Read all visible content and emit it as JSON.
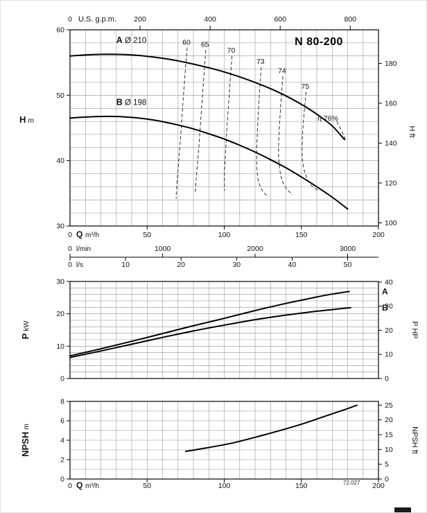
{
  "meta": {
    "code": "72.027"
  },
  "chart_data": [
    {
      "id": "head",
      "type": "line",
      "title": "N 80-200",
      "x_range": [
        0,
        200
      ],
      "y_range": [
        30,
        60
      ],
      "x_grid_step": 10,
      "y_grid_step": 2,
      "axes": {
        "left": {
          "label": "H",
          "unit": "m",
          "ticks": [
            30,
            40,
            50,
            60
          ]
        },
        "right": {
          "label": "H ft",
          "ticks": [
            100,
            120,
            140,
            160,
            180
          ],
          "to_left_factor": 0.3048
        },
        "top": {
          "label": "U.S. g.p.m.",
          "zero_label": "0",
          "ticks": [
            200,
            400,
            600,
            800
          ],
          "to_x_factor": 0.22712
        },
        "bottom": [
          {
            "label": "Q",
            "unit": "m³/h",
            "zero_label": "0",
            "ticks": [
              50,
              100,
              150,
              200
            ],
            "to_x_factor": 1
          },
          {
            "label": "",
            "unit": "l/min",
            "zero_label": "0",
            "ticks": [
              1000,
              2000,
              3000
            ],
            "to_x_factor": 0.06
          },
          {
            "label": "",
            "unit": "l/s",
            "zero_label": "0",
            "ticks": [
              10,
              20,
              30,
              40,
              50
            ],
            "to_x_factor": 3.6
          }
        ]
      },
      "series": [
        {
          "name": "A",
          "label_bold": "A",
          "label_rest": " Ø 210",
          "label_pos": [
            30,
            58.0
          ],
          "points": [
            [
              0,
              56.0
            ],
            [
              10,
              56.15
            ],
            [
              20,
              56.25
            ],
            [
              30,
              56.25
            ],
            [
              40,
              56.15
            ],
            [
              50,
              55.95
            ],
            [
              60,
              55.65
            ],
            [
              70,
              55.25
            ],
            [
              80,
              54.75
            ],
            [
              90,
              54.2
            ],
            [
              100,
              53.55
            ],
            [
              110,
              52.8
            ],
            [
              120,
              51.95
            ],
            [
              130,
              51.0
            ],
            [
              140,
              49.9
            ],
            [
              150,
              48.6
            ],
            [
              160,
              47.1
            ],
            [
              170,
              45.3
            ],
            [
              178,
              43.2
            ]
          ]
        },
        {
          "name": "B",
          "label_bold": "B",
          "label_rest": " Ø 198",
          "label_pos": [
            30,
            48.5
          ],
          "points": [
            [
              0,
              46.5
            ],
            [
              10,
              46.65
            ],
            [
              20,
              46.75
            ],
            [
              30,
              46.75
            ],
            [
              40,
              46.6
            ],
            [
              50,
              46.35
            ],
            [
              60,
              45.95
            ],
            [
              70,
              45.45
            ],
            [
              80,
              44.85
            ],
            [
              90,
              44.1
            ],
            [
              100,
              43.3
            ],
            [
              110,
              42.35
            ],
            [
              120,
              41.3
            ],
            [
              130,
              40.15
            ],
            [
              140,
              38.9
            ],
            [
              150,
              37.5
            ],
            [
              160,
              36.0
            ],
            [
              170,
              34.4
            ],
            [
              180,
              32.6
            ]
          ]
        }
      ],
      "efficiency_curves": [
        {
          "label": "60",
          "label_pos": [
            75.5,
            57.7
          ],
          "points": [
            [
              76,
              57.3
            ],
            [
              74.5,
              53
            ],
            [
              73,
              48
            ],
            [
              71.5,
              43
            ],
            [
              70,
              38.5
            ],
            [
              69,
              35.3
            ],
            [
              68.8,
              34.2
            ]
          ]
        },
        {
          "label": "65",
          "label_pos": [
            87.5,
            57.4
          ],
          "points": [
            [
              88,
              56.9
            ],
            [
              86.5,
              52
            ],
            [
              85,
              47
            ],
            [
              83.5,
              42
            ],
            [
              82,
              37.8
            ],
            [
              81.2,
              35.0
            ]
          ]
        },
        {
          "label": "70",
          "label_pos": [
            104.5,
            56.5
          ],
          "points": [
            [
              105,
              56.0
            ],
            [
              103.5,
              51
            ],
            [
              102,
              46
            ],
            [
              100.8,
              41
            ],
            [
              100,
              37.5
            ],
            [
              100.2,
              35.4
            ]
          ]
        },
        {
          "label": "73",
          "label_pos": [
            123.5,
            54.8
          ],
          "points": [
            [
              124,
              54.3
            ],
            [
              122.5,
              49
            ],
            [
              121.5,
              44.5
            ],
            [
              121,
              40.5
            ],
            [
              121.8,
              37.3
            ],
            [
              124.5,
              35.5
            ],
            [
              128.5,
              34.4
            ]
          ]
        },
        {
          "label": "74",
          "label_pos": [
            137.5,
            53.4
          ],
          "points": [
            [
              138,
              52.9
            ],
            [
              136.5,
              48
            ],
            [
              135.5,
              44
            ],
            [
              135.3,
              40.5
            ],
            [
              136.8,
              37.6
            ],
            [
              140,
              35.8
            ],
            [
              144.5,
              34.8
            ]
          ]
        },
        {
          "label": "75",
          "label_pos": [
            152.5,
            51.0
          ],
          "points": [
            [
              153,
              50.5
            ],
            [
              151.5,
              46.5
            ],
            [
              150.6,
              43
            ],
            [
              150.8,
              40
            ],
            [
              152.8,
              37.8
            ],
            [
              156.5,
              36.2
            ],
            [
              161,
              35.4
            ]
          ]
        },
        {
          "label": "η 76%",
          "label_pos": [
            160.5,
            46.1
          ],
          "label_anchor": "start",
          "points": [
            [
              173,
              46.0
            ],
            [
              176,
              44.6
            ],
            [
              178.5,
              43.3
            ]
          ]
        }
      ]
    },
    {
      "id": "power",
      "type": "line",
      "x_range": [
        0,
        200
      ],
      "y_range": [
        0,
        30
      ],
      "x_grid_step": 10,
      "y_grid_step": 2,
      "axes": {
        "left": {
          "label": "P",
          "unit": "kW",
          "ticks": [
            0,
            10,
            20,
            30
          ]
        },
        "right": {
          "label": "P HP",
          "ticks": [
            0,
            10,
            20,
            30,
            40
          ],
          "to_left_factor": 0.7457
        }
      },
      "series": [
        {
          "name": "A",
          "end_label": "A",
          "points": [
            [
              0,
              7.0
            ],
            [
              20,
              9.2
            ],
            [
              40,
              11.5
            ],
            [
              60,
              13.9
            ],
            [
              80,
              16.3
            ],
            [
              100,
              18.6
            ],
            [
              120,
              21.0
            ],
            [
              140,
              23.2
            ],
            [
              160,
              25.2
            ],
            [
              170,
              26.1
            ],
            [
              181,
              26.9
            ]
          ]
        },
        {
          "name": "B",
          "end_label": "B",
          "points": [
            [
              0,
              6.5
            ],
            [
              20,
              8.5
            ],
            [
              40,
              10.6
            ],
            [
              60,
              12.7
            ],
            [
              80,
              14.7
            ],
            [
              100,
              16.5
            ],
            [
              120,
              18.2
            ],
            [
              140,
              19.6
            ],
            [
              160,
              20.8
            ],
            [
              170,
              21.3
            ],
            [
              182,
              21.9
            ]
          ]
        }
      ]
    },
    {
      "id": "npsh",
      "type": "line",
      "x_range": [
        0,
        200
      ],
      "y_range": [
        0,
        8
      ],
      "x_grid_step": 10,
      "y_grid_step": 1,
      "axes": {
        "left": {
          "label": "NPSH",
          "unit": "m",
          "ticks": [
            0,
            2,
            4,
            6,
            8
          ]
        },
        "right": {
          "label": "NPSH ft",
          "ticks": [
            0,
            5,
            10,
            15,
            20,
            25
          ],
          "to_left_factor": 0.3048
        },
        "bottom": [
          {
            "label": "Q",
            "unit": "m³/h",
            "zero_label": "0",
            "ticks": [
              50,
              100,
              150,
              200
            ],
            "to_x_factor": 1
          }
        ]
      },
      "series": [
        {
          "name": "NPSH",
          "points": [
            [
              75,
              2.85
            ],
            [
              90,
              3.25
            ],
            [
              105,
              3.7
            ],
            [
              120,
              4.3
            ],
            [
              135,
              4.95
            ],
            [
              150,
              5.65
            ],
            [
              165,
              6.45
            ],
            [
              178,
              7.15
            ],
            [
              186,
              7.6
            ]
          ]
        }
      ]
    }
  ]
}
